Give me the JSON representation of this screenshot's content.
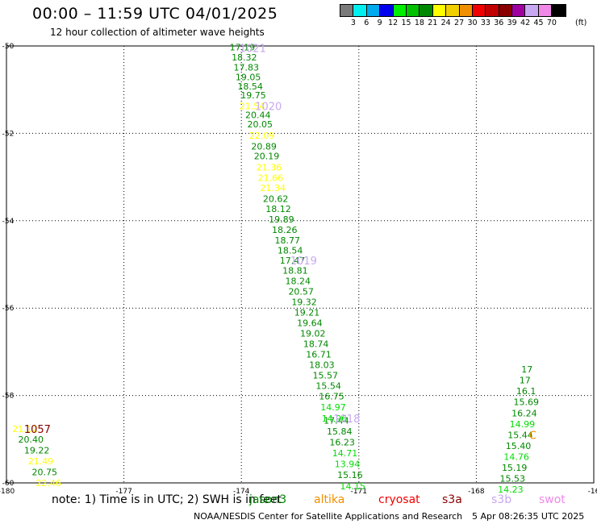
{
  "title": "00:00 – 11:59 UTC 04/01/2025",
  "subtitle": "12 hour collection of altimeter wave heights",
  "legend": {
    "labels": [
      "3",
      "6",
      "9",
      "12",
      "15",
      "18",
      "21",
      "24",
      "27",
      "30",
      "33",
      "36",
      "39",
      "42",
      "45",
      "70"
    ],
    "unit": "(ft)",
    "colors": [
      "#7a7a7a",
      "#00f0f0",
      "#00aaee",
      "#0000ee",
      "#00ee00",
      "#00c000",
      "#008800",
      "#ffff00",
      "#f0d000",
      "#f09000",
      "#f00000",
      "#c00000",
      "#880000",
      "#a000a0",
      "#c8a8f0",
      "#f088e8",
      "#000000"
    ]
  },
  "map": {
    "lon_ticks": [
      "-180",
      "-177",
      "-174",
      "-171",
      "-168",
      "-16"
    ],
    "lat_ticks": [
      "-50",
      "-52",
      "-54",
      "-56",
      "-58",
      "-60"
    ],
    "tracks": [
      {
        "color": "#008800",
        "points": [
          {
            "v": "17.19",
            "lon": -174.3,
            "lat": -50.03
          },
          {
            "v": "18.32",
            "lon": -174.25,
            "lat": -50.26
          },
          {
            "v": "17.83",
            "lon": -174.2,
            "lat": -50.49
          },
          {
            "v": "19.05",
            "lon": -174.15,
            "lat": -50.71
          },
          {
            "v": "18.54",
            "lon": -174.1,
            "lat": -50.92
          },
          {
            "v": "19.75",
            "lon": -174.02,
            "lat": -51.13
          },
          {
            "v": "20.44",
            "lon": -173.9,
            "lat": -51.58
          },
          {
            "v": "20.05",
            "lon": -173.85,
            "lat": -51.79
          },
          {
            "v": "20.89",
            "lon": -173.75,
            "lat": -52.3
          },
          {
            "v": "20.19",
            "lon": -173.68,
            "lat": -52.52
          },
          {
            "v": "20.62",
            "lon": -173.45,
            "lat": -53.5
          },
          {
            "v": "18.12",
            "lon": -173.38,
            "lat": -53.73
          },
          {
            "v": "19.89",
            "lon": -173.3,
            "lat": -53.97
          },
          {
            "v": "18.26",
            "lon": -173.22,
            "lat": -54.21
          },
          {
            "v": "18.77",
            "lon": -173.15,
            "lat": -54.45
          },
          {
            "v": "18.54",
            "lon": -173.08,
            "lat": -54.68
          },
          {
            "v": "17.47",
            "lon": -173.02,
            "lat": -54.91
          },
          {
            "v": "18.81",
            "lon": -172.95,
            "lat": -55.14
          },
          {
            "v": "18.24",
            "lon": -172.88,
            "lat": -55.38
          },
          {
            "v": "20.57",
            "lon": -172.8,
            "lat": -55.62
          },
          {
            "v": "19.32",
            "lon": -172.72,
            "lat": -55.86
          },
          {
            "v": "19.21",
            "lon": -172.65,
            "lat": -56.1
          },
          {
            "v": "19.64",
            "lon": -172.58,
            "lat": -56.34
          },
          {
            "v": "19.02",
            "lon": -172.5,
            "lat": -56.58
          },
          {
            "v": "18.74",
            "lon": -172.42,
            "lat": -56.82
          },
          {
            "v": "16.71",
            "lon": -172.35,
            "lat": -57.06
          },
          {
            "v": "18.03",
            "lon": -172.27,
            "lat": -57.3
          },
          {
            "v": "15.57",
            "lon": -172.18,
            "lat": -57.54
          },
          {
            "v": "15.54",
            "lon": -172.1,
            "lat": -57.78
          },
          {
            "v": "16.75",
            "lon": -172.02,
            "lat": -58.02
          },
          {
            "v": "17.44",
            "lon": -171.9,
            "lat": -58.57
          },
          {
            "v": "15.84",
            "lon": -171.82,
            "lat": -58.82
          },
          {
            "v": "16.23",
            "lon": -171.75,
            "lat": -59.07
          },
          {
            "v": "15.16",
            "lon": -171.55,
            "lat": -59.82
          }
        ]
      },
      {
        "color": "#ffff00",
        "points": [
          {
            "v": "21.54",
            "lon": -174.05,
            "lat": -51.37
          },
          {
            "v": "22.09",
            "lon": -173.8,
            "lat": -52.05
          },
          {
            "v": "21.36",
            "lon": -173.62,
            "lat": -52.78
          },
          {
            "v": "21.66",
            "lon": -173.58,
            "lat": -53.02
          },
          {
            "v": "21.34",
            "lon": -173.52,
            "lat": -53.25
          }
        ]
      },
      {
        "color": "#00dd00",
        "points": [
          {
            "v": "14.97",
            "lon": -171.98,
            "lat": -58.27
          },
          {
            "v": "14.96",
            "lon": -171.95,
            "lat": -58.52
          },
          {
            "v": "14.71",
            "lon": -171.68,
            "lat": -59.32
          },
          {
            "v": "13.94",
            "lon": -171.62,
            "lat": -59.57
          },
          {
            "v": "14.15",
            "lon": -171.48,
            "lat": -60.07
          }
        ]
      },
      {
        "color": "#008800",
        "points": [
          {
            "v": "20.40",
            "lon": -179.7,
            "lat": -59.0
          },
          {
            "v": "19.22",
            "lon": -179.55,
            "lat": -59.25
          },
          {
            "v": "20.75",
            "lon": -179.35,
            "lat": -59.75
          }
        ]
      },
      {
        "color": "#ffff00",
        "points": [
          {
            "v": "21.12",
            "lon": -179.85,
            "lat": -58.76
          },
          {
            "v": "21.49",
            "lon": -179.45,
            "lat": -59.5
          },
          {
            "v": "22.46",
            "lon": -179.25,
            "lat": -60.0
          }
        ]
      },
      {
        "color": "#008800",
        "points": [
          {
            "v": "17",
            "lon": -166.85,
            "lat": -57.4
          },
          {
            "v": "17",
            "lon": -166.9,
            "lat": -57.65
          },
          {
            "v": "16.1",
            "lon": -166.98,
            "lat": -57.9
          },
          {
            "v": "15.69",
            "lon": -167.05,
            "lat": -58.15
          },
          {
            "v": "16.24",
            "lon": -167.1,
            "lat": -58.4
          },
          {
            "v": "15.44",
            "lon": -167.2,
            "lat": -58.9
          },
          {
            "v": "15.40",
            "lon": -167.25,
            "lat": -59.15
          },
          {
            "v": "15.19",
            "lon": -167.35,
            "lat": -59.65
          },
          {
            "v": "15.53",
            "lon": -167.4,
            "lat": -59.9
          }
        ]
      },
      {
        "color": "#00dd00",
        "points": [
          {
            "v": "14.99",
            "lon": -167.15,
            "lat": -58.65
          },
          {
            "v": "14.76",
            "lon": -167.3,
            "lat": -59.4
          },
          {
            "v": "14.23",
            "lon": -167.45,
            "lat": -60.15
          }
        ]
      }
    ],
    "annotations": [
      {
        "text": "1021",
        "color": "#c8a8f0",
        "lon": -174.05,
        "lat": -50.05
      },
      {
        "text": "1020",
        "color": "#c8a8f0",
        "lon": -173.65,
        "lat": -51.37
      },
      {
        "text": "1019",
        "color": "#c8a8f0",
        "lon": -172.75,
        "lat": -54.91
      },
      {
        "text": "1018",
        "color": "#c8a8f0",
        "lon": -171.65,
        "lat": -58.52
      },
      {
        "text": "1057",
        "color": "#880000",
        "lon": -179.55,
        "lat": -58.76
      },
      {
        "text": "C",
        "color": "#f09000",
        "lon": -166.65,
        "lat": -58.9
      }
    ]
  },
  "note": {
    "prefix": "note:  1) Time is in UTC; 2) SWH is in feet",
    "missions": [
      {
        "name": "jason3",
        "color": "#008800"
      },
      {
        "name": "altika",
        "color": "#f09000"
      },
      {
        "name": "cryosat",
        "color": "#f00000"
      },
      {
        "name": "s3a",
        "color": "#880000"
      },
      {
        "name": "s3b",
        "color": "#c8a8f0"
      },
      {
        "name": "swot",
        "color": "#f088e8"
      }
    ]
  },
  "credit": "NOAA/NESDIS Center for Satellite Applications and Research",
  "timestamp": "5 Apr 08:26:35 UTC 2025"
}
